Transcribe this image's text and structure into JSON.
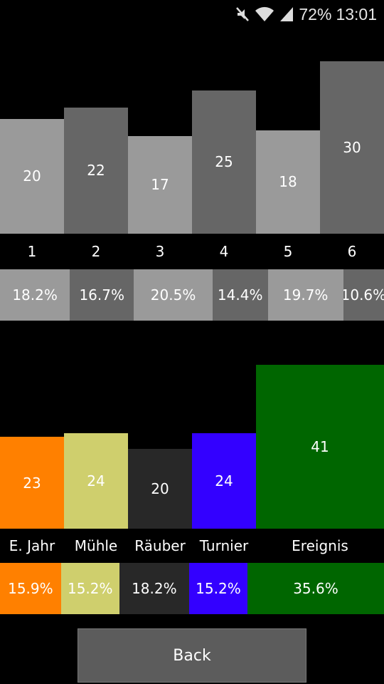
{
  "status_bar": {
    "battery": "72%",
    "time": "13:01",
    "icons": [
      "mute-icon",
      "wifi-icon",
      "signal-icon"
    ]
  },
  "chart_data": [
    {
      "type": "bar",
      "categories": [
        "1",
        "2",
        "3",
        "4",
        "5",
        "6"
      ],
      "values": [
        20,
        22,
        17,
        25,
        18,
        30
      ],
      "percentages": [
        "18.2%",
        "16.7%",
        "20.5%",
        "14.4%",
        "19.7%",
        "10.6%"
      ],
      "colors": [
        "#9a9a9a",
        "#666666",
        "#9a9a9a",
        "#666666",
        "#9a9a9a",
        "#666666"
      ],
      "widths": [
        1,
        1,
        1,
        1,
        1,
        1
      ],
      "pct_widths": [
        18.2,
        16.7,
        20.5,
        14.4,
        19.7,
        10.6
      ]
    },
    {
      "type": "bar",
      "categories": [
        "E. Jahr",
        "Mühle",
        "Räuber",
        "Turnier",
        "Ereignis"
      ],
      "values": [
        23,
        24,
        20,
        24,
        41
      ],
      "percentages": [
        "15.9%",
        "15.2%",
        "18.2%",
        "15.2%",
        "35.6%"
      ],
      "colors": [
        "#ff8000",
        "#cfcf6d",
        "#282828",
        "#3300ff",
        "#006600"
      ],
      "widths": [
        1,
        1,
        1,
        1,
        2
      ],
      "pct_widths": [
        15.9,
        15.2,
        18.2,
        15.2,
        35.6
      ]
    }
  ],
  "back_button": {
    "label": "Back"
  }
}
